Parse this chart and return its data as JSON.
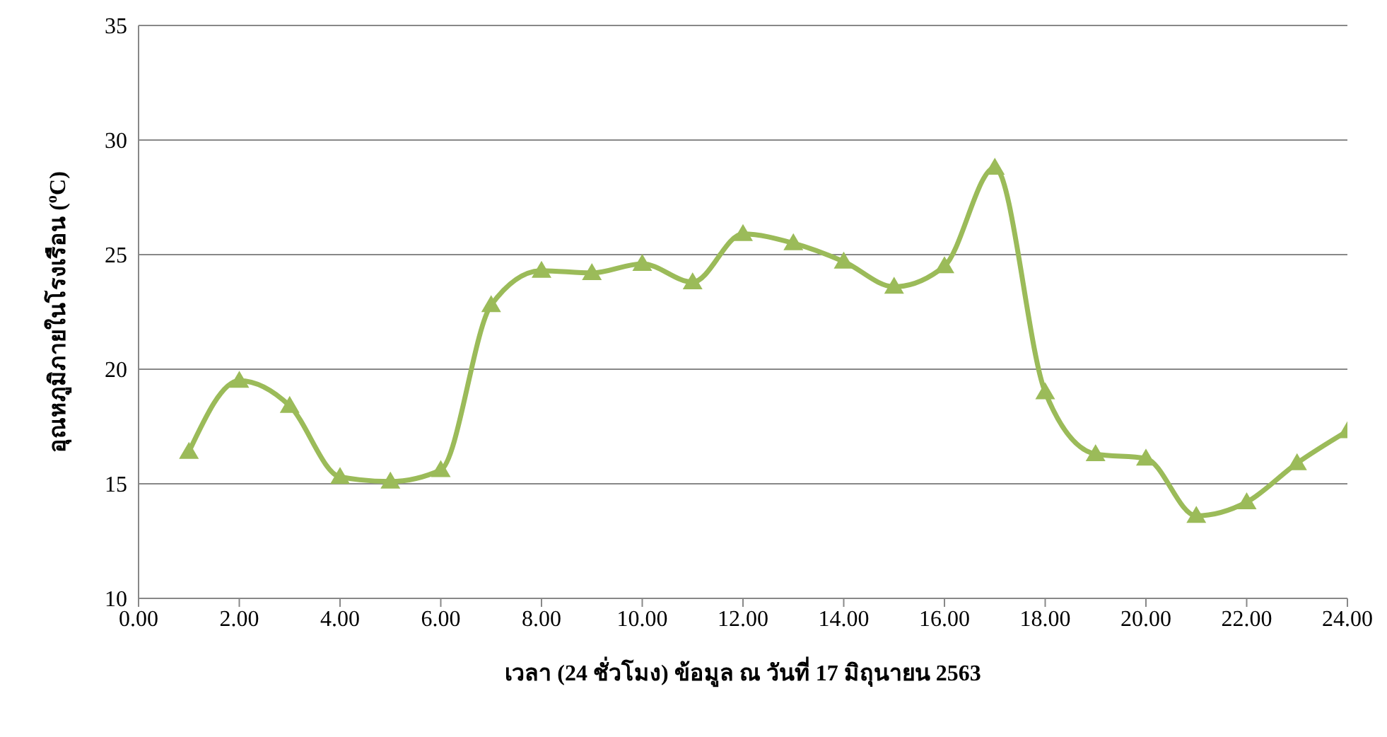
{
  "chart_data": {
    "type": "line",
    "xlabel": "เวลา (24 ชั่วโมง) ข้อมูล ณ วันที่ 17 มิถุนายน 2563",
    "ylabel": "อุณหภูมิภายในโรงเรือน ($^{o}$C)",
    "x": [
      1,
      2,
      3,
      4,
      5,
      6,
      7,
      8,
      9,
      10,
      11,
      12,
      13,
      14,
      15,
      16,
      17,
      18,
      19,
      20,
      21,
      22,
      23,
      24
    ],
    "series": [
      {
        "color": "#9bbb59",
        "values": [
          16.4,
          19.5,
          18.4,
          15.3,
          15.1,
          15.6,
          22.8,
          24.3,
          24.2,
          24.6,
          23.8,
          25.9,
          25.5,
          24.7,
          23.6,
          24.5,
          28.8,
          19.0,
          16.3,
          16.1,
          13.6,
          14.2,
          15.9,
          17.3
        ]
      }
    ],
    "xlim": [
      0,
      24
    ],
    "xticks": [
      {
        "value": 0,
        "label": "0.00"
      },
      {
        "value": 2,
        "label": "2.00"
      },
      {
        "value": 4,
        "label": "4.00"
      },
      {
        "value": 6,
        "label": "6.00"
      },
      {
        "value": 8,
        "label": "8.00"
      },
      {
        "value": 10,
        "label": "10.00"
      },
      {
        "value": 12,
        "label": "12.00"
      },
      {
        "value": 14,
        "label": "14.00"
      },
      {
        "value": 16,
        "label": "16.00"
      },
      {
        "value": 18,
        "label": "18.00"
      },
      {
        "value": 20,
        "label": "20.00"
      },
      {
        "value": 22,
        "label": "22.00"
      },
      {
        "value": 24,
        "label": "24.00"
      }
    ],
    "ylim": [
      10,
      35
    ],
    "yticks": [
      10,
      15,
      20,
      25,
      30,
      35
    ],
    "grid": "y",
    "marker": "triangle",
    "line_style": "solid",
    "legend": false
  }
}
